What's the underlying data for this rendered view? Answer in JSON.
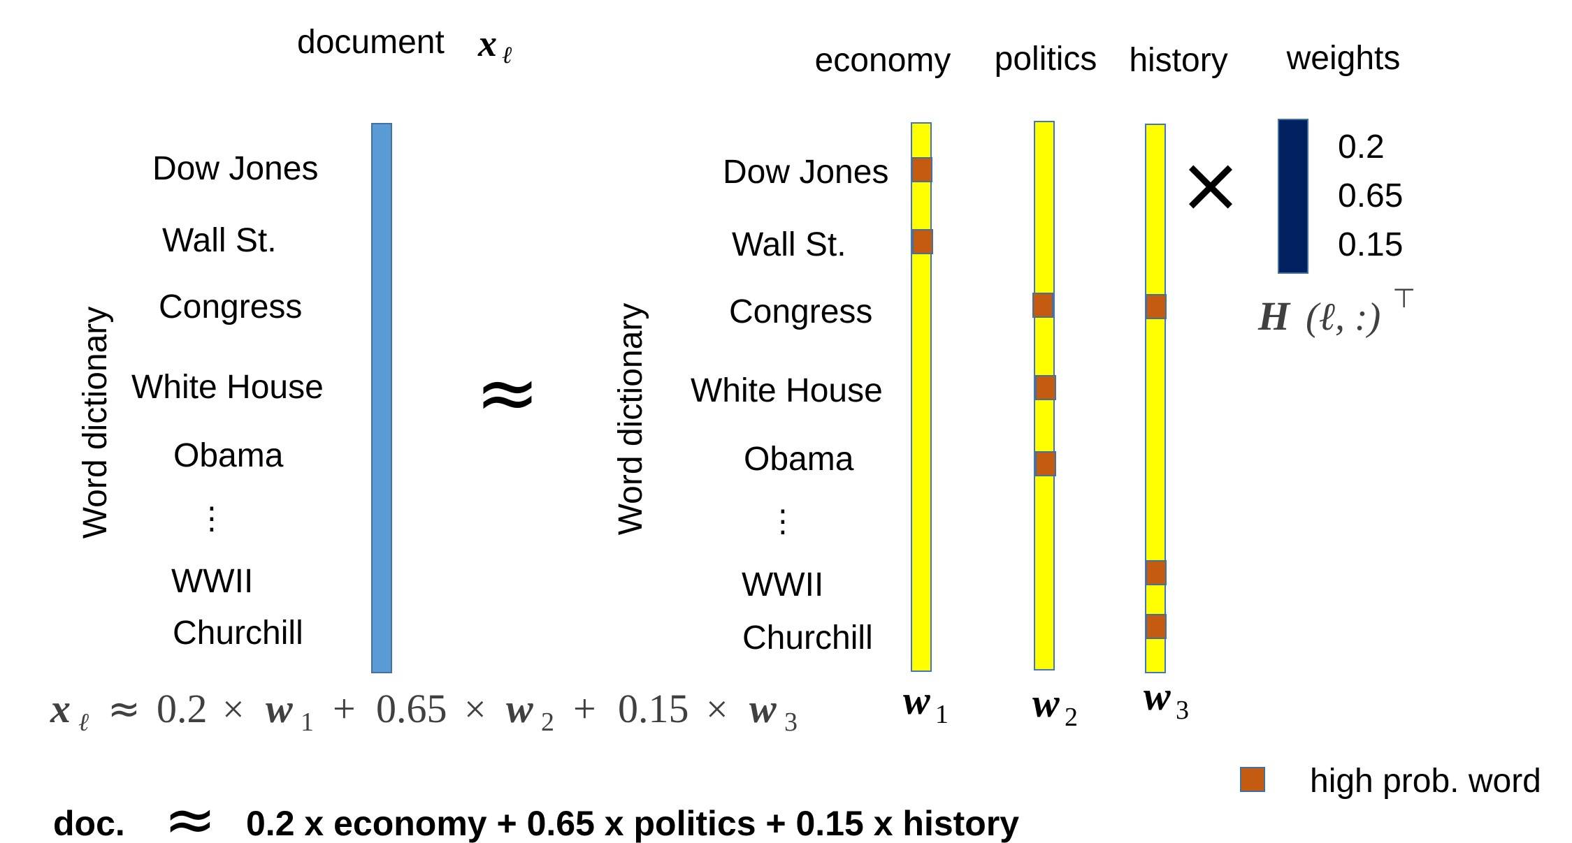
{
  "left": {
    "title_text": "document",
    "title_math": "x",
    "title_sub": "ℓ",
    "axis_label": "Word dictionary",
    "words": [
      "Dow Jones",
      "Wall St.",
      "Congress",
      "White House",
      "Obama",
      "⋮",
      "WWII",
      "Churchill"
    ]
  },
  "approx_symbol": "≈",
  "right": {
    "axis_label": "Word dictionary",
    "words": [
      "Dow Jones",
      "Wall St.",
      "Congress",
      "White House",
      "Obama",
      "⋮",
      "WWII",
      "Churchill"
    ],
    "topics": [
      {
        "name": "economy",
        "vector": "w",
        "sub": "1"
      },
      {
        "name": "politics",
        "vector": "w",
        "sub": "2"
      },
      {
        "name": "history",
        "vector": "w",
        "sub": "3"
      }
    ],
    "high_prob_words": {
      "economy": [
        "Dow Jones",
        "Wall St."
      ],
      "politics": [
        "Congress",
        "White House",
        "Obama"
      ],
      "history": [
        "Congress",
        "WWII",
        "Churchill"
      ]
    }
  },
  "times_symbol": "×",
  "weights": {
    "title": "weights",
    "values": [
      "0.2",
      "0.65",
      "0.15"
    ],
    "label_main": "H",
    "label_args": "(ℓ, :)",
    "label_sup": "⊤"
  },
  "equation": {
    "lhs": "x",
    "lhs_sub": "ℓ",
    "approx": "≈",
    "terms": [
      {
        "coef": "0.2",
        "vec": "w",
        "sub": "1"
      },
      {
        "coef": "0.65",
        "vec": "w",
        "sub": "2"
      },
      {
        "coef": "0.15",
        "vec": "w",
        "sub": "3"
      }
    ],
    "times": "×",
    "plus": "+"
  },
  "legend": {
    "label": "high prob. word"
  },
  "summary": {
    "prefix": "doc.",
    "approx": "≈",
    "rhs": "0.2 x economy + 0.65 x politics + 0.15 x history"
  },
  "colors": {
    "document_bar": "#5b9bd5",
    "document_bar_border": "#41719c",
    "topic_bar": "#ffff00",
    "topic_bar_border": "#4472c4",
    "marker": "#c55a11",
    "marker_border": "#41719c",
    "weights_bar": "#002060",
    "text": "#000000",
    "math": "#404040"
  }
}
